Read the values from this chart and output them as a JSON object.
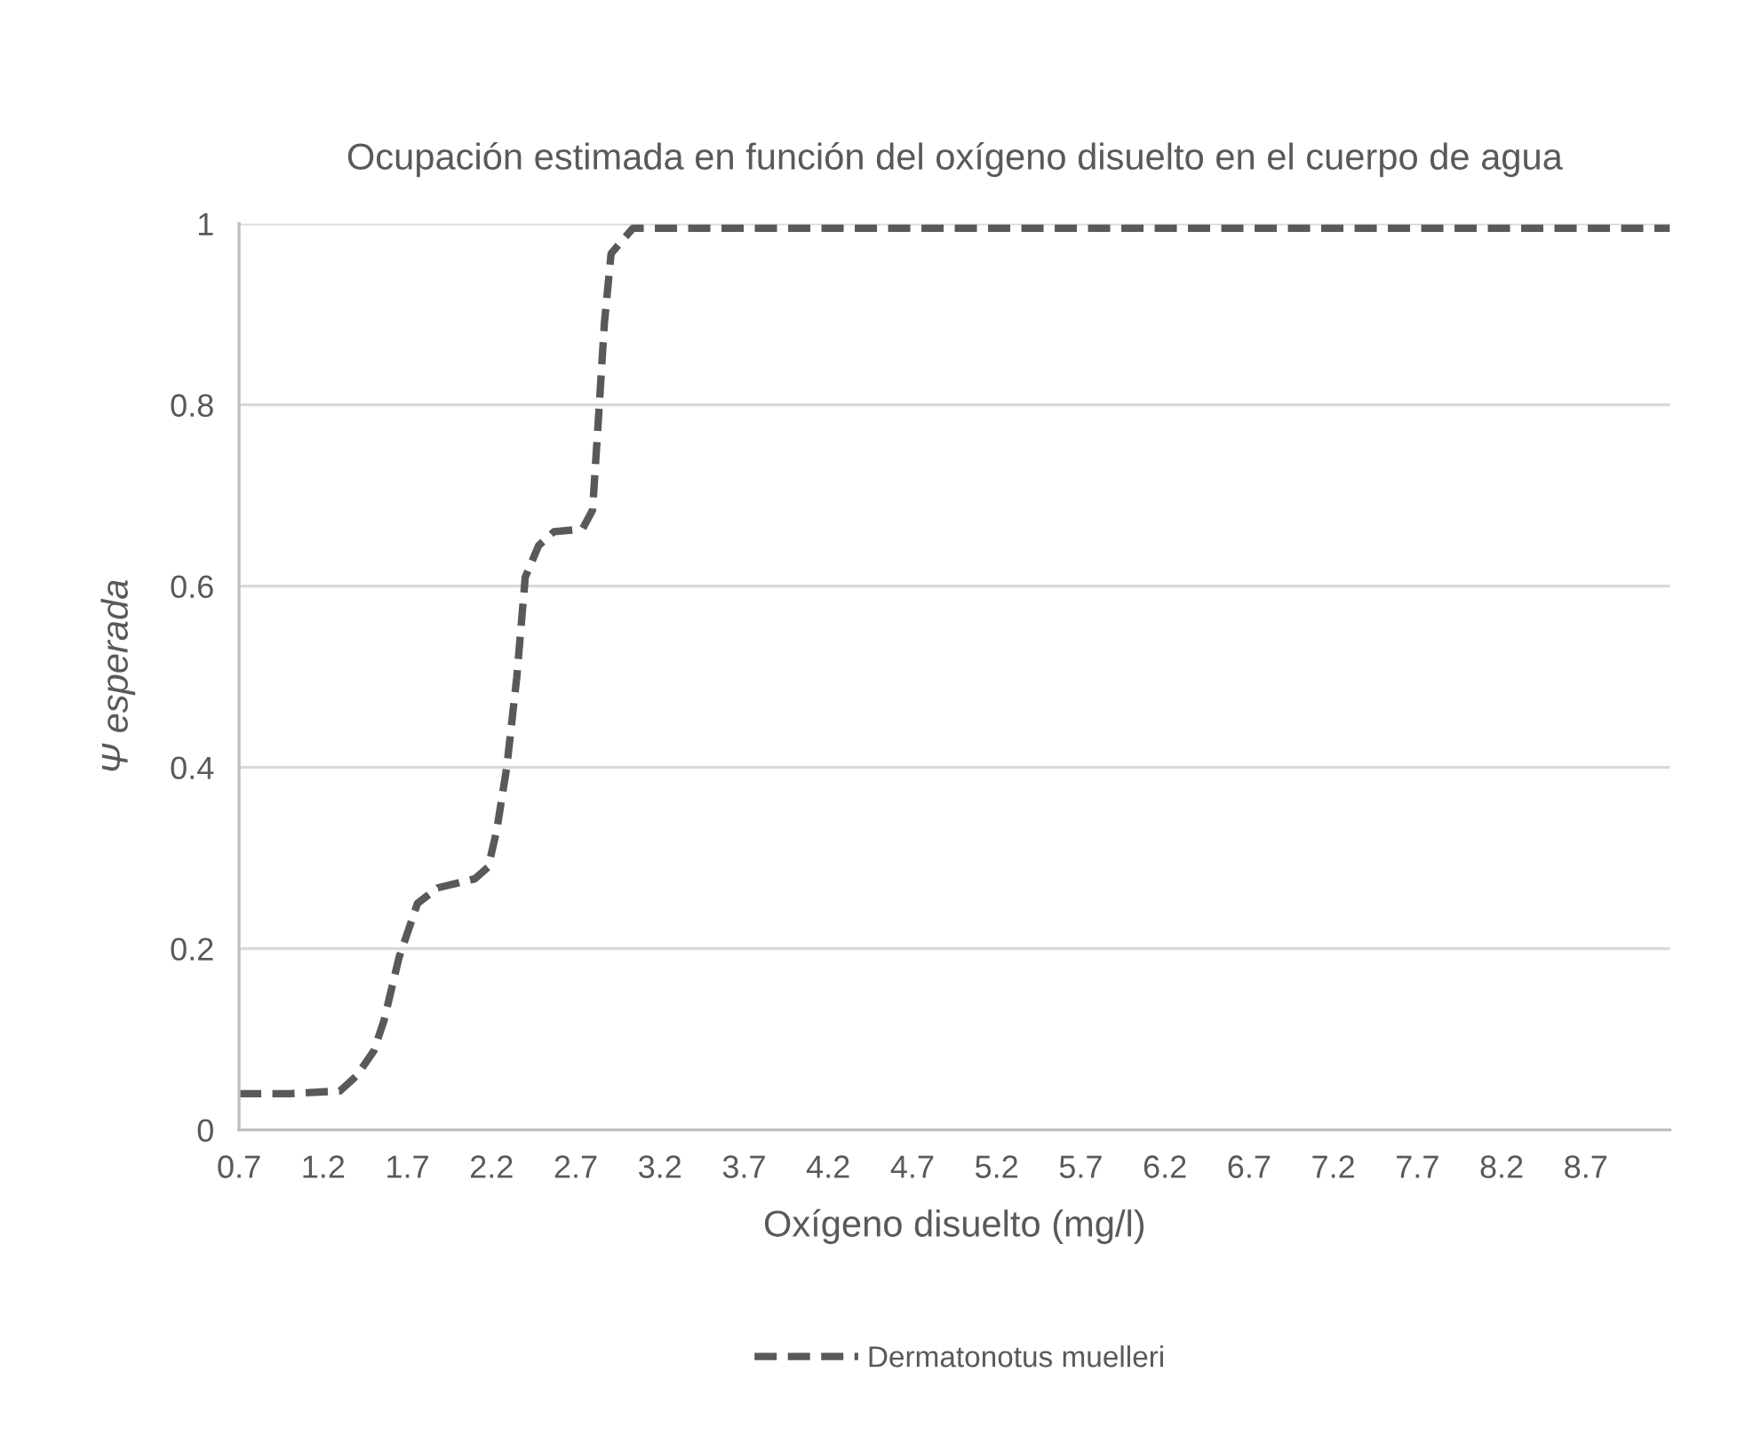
{
  "chart_data": {
    "type": "line",
    "title": "Ocupación estimada en función del oxígeno disuelto en el cuerpo de agua",
    "xlabel": "Oxígeno disuelto (mg/l)",
    "ylabel": "Ψ esperada",
    "series": [
      {
        "name": "Dermatonotus muelleri",
        "color": "#595959",
        "x": [
          0.7,
          1.0,
          1.3,
          1.4,
          1.5,
          1.56,
          1.65,
          1.76,
          1.88,
          2.1,
          2.18,
          2.23,
          2.29,
          2.35,
          2.4,
          2.48,
          2.57,
          2.74,
          2.8,
          2.84,
          2.87,
          2.91,
          3.04,
          4.0,
          6.0,
          8.0,
          9.2
        ],
        "values": [
          0.04,
          0.04,
          0.043,
          0.06,
          0.087,
          0.12,
          0.19,
          0.25,
          0.267,
          0.277,
          0.29,
          0.33,
          0.4,
          0.5,
          0.61,
          0.645,
          0.66,
          0.663,
          0.684,
          0.8,
          0.89,
          0.967,
          0.995,
          0.995,
          0.995,
          0.995,
          0.995
        ]
      }
    ],
    "xlim": [
      0.7,
      9.2
    ],
    "xticks": [
      0.7,
      1.2,
      1.7,
      2.2,
      2.7,
      3.2,
      3.7,
      4.2,
      4.7,
      5.2,
      5.7,
      6.2,
      6.7,
      7.2,
      7.7,
      8.2,
      8.7
    ],
    "ylim": [
      0,
      1
    ],
    "yticks": [
      0,
      0.2,
      0.4,
      0.6,
      0.8,
      1
    ],
    "grid": "y",
    "legend": "bottom",
    "line_style": "dashed",
    "marker": "none"
  }
}
